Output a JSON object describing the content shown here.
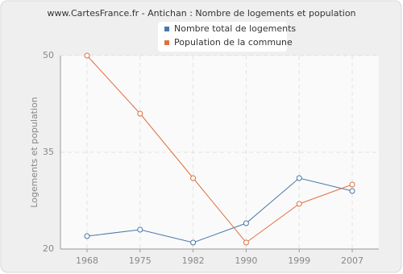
{
  "chart_data": {
    "type": "line",
    "title": "www.CartesFrance.fr - Antichan : Nombre de logements et population",
    "y_label": "Logements et population",
    "categories": [
      "1968",
      "1975",
      "1982",
      "1990",
      "1999",
      "2007"
    ],
    "series": [
      {
        "name": "Nombre total de logements",
        "color": "#4a76a8",
        "values": [
          22,
          23,
          21,
          24,
          31,
          29
        ]
      },
      {
        "name": "Population de la commune",
        "color": "#e07040",
        "values": [
          50,
          41,
          31,
          21,
          27,
          30
        ]
      }
    ],
    "ylim": [
      20,
      50
    ],
    "yticks": [
      20,
      35,
      50
    ],
    "grid": true
  }
}
